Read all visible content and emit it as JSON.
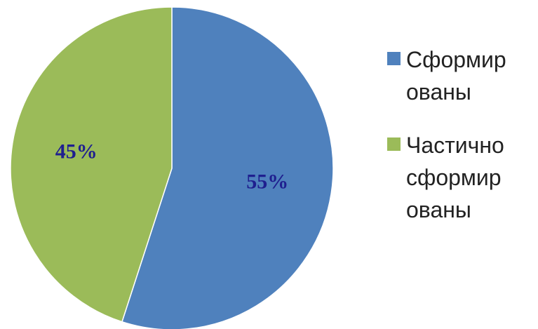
{
  "chart_data": {
    "type": "pie",
    "categories": [
      "Сформированы",
      "Частично сформированы"
    ],
    "values": [
      55,
      45
    ],
    "value_labels": [
      "55%",
      "45%"
    ],
    "colors": [
      "#4f81bd",
      "#9bbb59"
    ]
  }
}
